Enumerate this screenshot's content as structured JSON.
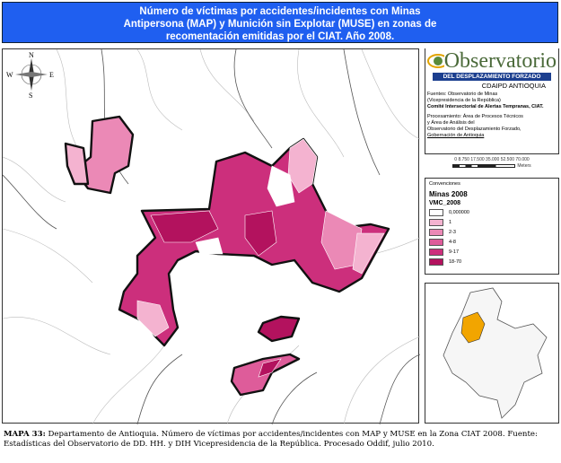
{
  "title": [
    "Número de víctimas por accidentes/incidentes con Minas",
    "Antipersona (MAP) y Munición sin Explotar (MUSE) en zonas de",
    "recomentación emitidas por el CIAT. Año 2008."
  ],
  "compass": {
    "n": "N",
    "s": "S",
    "e": "E",
    "w": "W"
  },
  "info": {
    "logo_word": "Observatorio",
    "logo_band": "DEL DESPLAZAMIENTO FORZADO",
    "org": "CDAIPD ANTIOQUIA",
    "sources": [
      "Fuentes: Observatorio de Minas",
      "(Vicepresidencia de la República)",
      "Comité Intersectorial de Alertas Tempranas, CIAT."
    ],
    "processing": [
      "Procesamiento: Área de Procesos Técnicos",
      "y Área de Análisis del",
      "Observatorio del Desplazamiento Forzado,",
      "Gobernación de Antioquia"
    ]
  },
  "scale": {
    "ticks": "0 8.750 17.500 35.000 52.500 70.000",
    "unit": "Meters"
  },
  "legend": {
    "heading": "Convenciones",
    "title": "Minas 2008",
    "field": "VMC_2008",
    "classes": [
      {
        "label": "0,000000",
        "color": "#ffffff"
      },
      {
        "label": "1",
        "color": "#f4b3d0"
      },
      {
        "label": "2-3",
        "color": "#eb89b6"
      },
      {
        "label": "4-8",
        "color": "#de5c9a"
      },
      {
        "label": "9-17",
        "color": "#cc2f7c"
      },
      {
        "label": "18-70",
        "color": "#b3125e"
      }
    ]
  },
  "caption": {
    "bold": "MAPA 33:",
    "text": " Departamento de Antioquia. Número de víctimas por accidentes/incidentes con MAP y MUSE en la Zona CIAT 2008. Fuente: Estadísticas del Observatorio de DD. HH. y DIH Vicepresidencia de la República. Procesado Oddif, julio 2010."
  }
}
